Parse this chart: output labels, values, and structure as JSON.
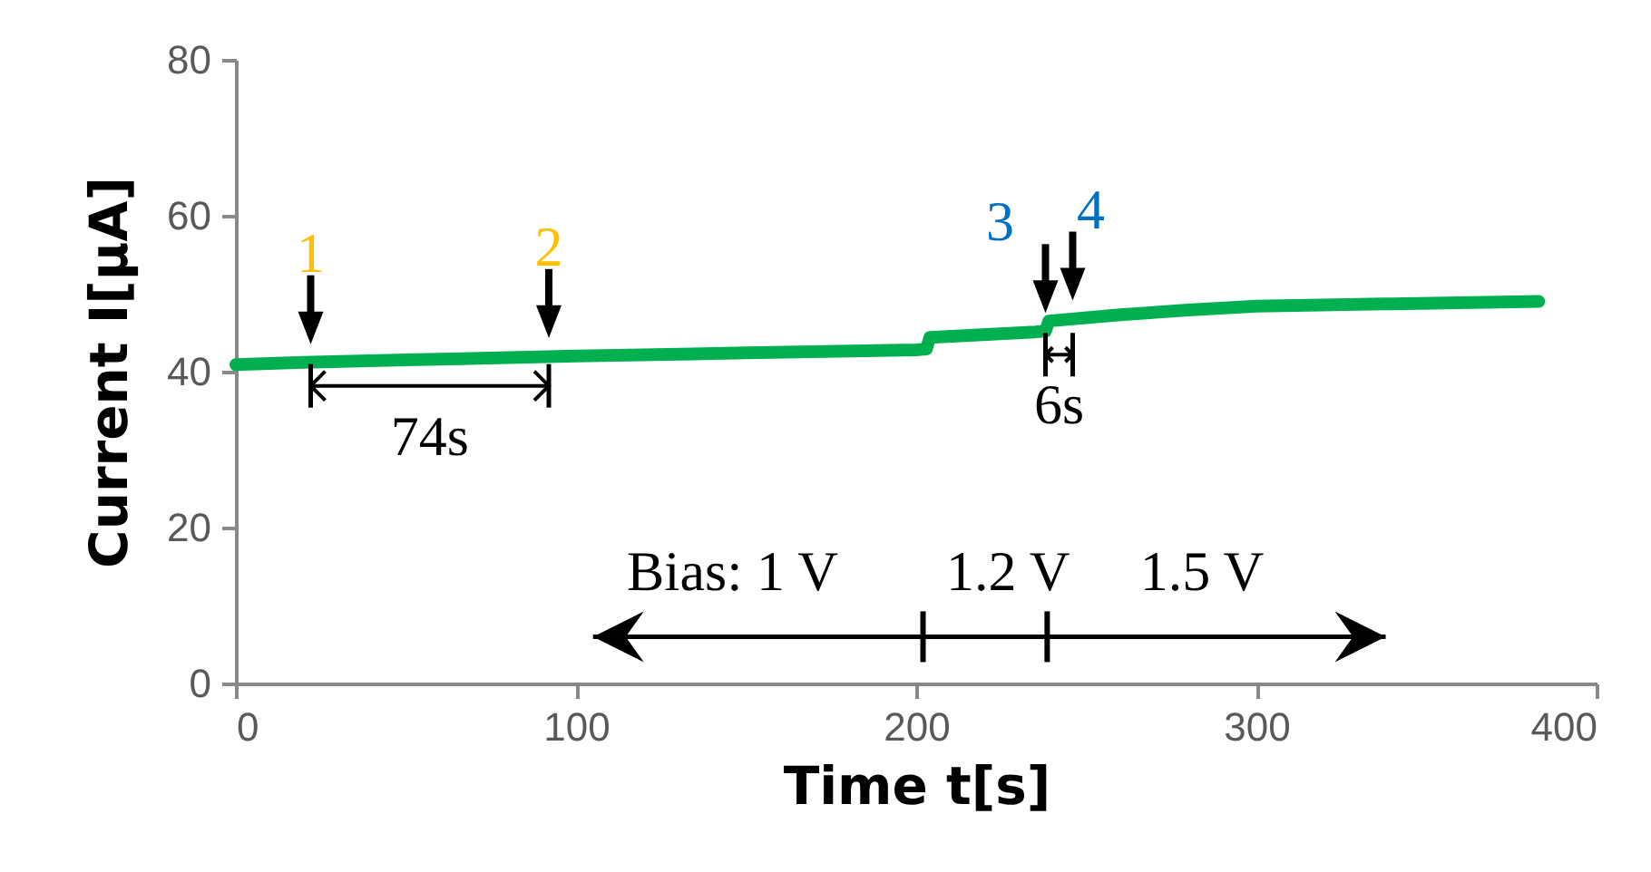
{
  "chart_data": {
    "type": "line",
    "xlabel": "Time t[s]",
    "ylabel": "Current I[μA]",
    "x": [
      0,
      20,
      50,
      100,
      150,
      200,
      203,
      204,
      235,
      238,
      239,
      260,
      280,
      300,
      340,
      383
    ],
    "series": [
      {
        "color": "#00b050",
        "values": [
          40.9,
          41.2,
          41.5,
          42.0,
          42.4,
          42.8,
          42.9,
          44.4,
          45.1,
          45.2,
          46.5,
          47.3,
          47.9,
          48.4,
          48.7,
          49.0
        ]
      }
    ],
    "xlim": [
      0,
      400
    ],
    "xticks": [
      0,
      100,
      200,
      300,
      400
    ],
    "ylim": [
      0,
      80
    ],
    "yticks": [
      0,
      20,
      40,
      60,
      80
    ],
    "grid": false,
    "legend": false,
    "annotations": [
      {
        "text": "1",
        "x": 22,
        "y": 41.2
      },
      {
        "text": "2",
        "x": 92,
        "y": 42.0
      },
      {
        "text": "3",
        "x": 238,
        "y": 45.2
      },
      {
        "text": "4",
        "x": 246,
        "y": 46.8
      },
      "74s",
      "6s",
      "Bias: 1 V",
      "1.2 V",
      "1.5 V"
    ]
  }
}
